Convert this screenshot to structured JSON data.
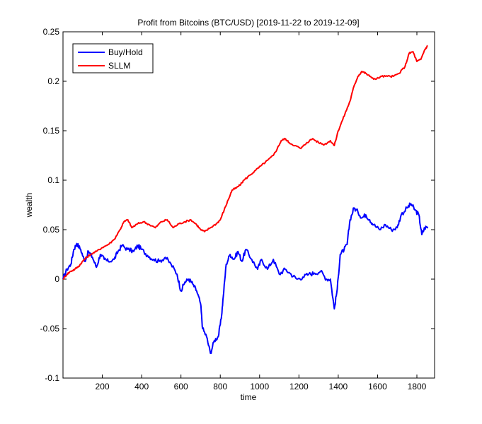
{
  "chart_data": {
    "type": "line",
    "title": "Profit from Bitcoins (BTC/USD) [2019-11-22 to 2019-12-09]",
    "xlabel": "time",
    "ylabel": "wealth",
    "xlim": [
      0,
      1890
    ],
    "ylim": [
      -0.1,
      0.25
    ],
    "xticks": [
      200,
      400,
      600,
      800,
      1000,
      1200,
      1400,
      1600,
      1800
    ],
    "yticks": [
      -0.1,
      -0.05,
      0,
      0.05,
      0.1,
      0.15,
      0.2,
      0.25
    ],
    "ytick_labels": [
      "-0.1",
      "-0.05",
      "0",
      "0.05",
      "0.1",
      "0.15",
      "0.2",
      "0.25"
    ],
    "grid": false,
    "legend_position": "top-left",
    "series": [
      {
        "name": "Buy/Hold",
        "color": "#0000ff",
        "points": [
          [
            0,
            0.0
          ],
          [
            20,
            0.01
          ],
          [
            40,
            0.015
          ],
          [
            55,
            0.03
          ],
          [
            70,
            0.036
          ],
          [
            90,
            0.03
          ],
          [
            110,
            0.018
          ],
          [
            130,
            0.028
          ],
          [
            150,
            0.022
          ],
          [
            170,
            0.012
          ],
          [
            190,
            0.025
          ],
          [
            210,
            0.02
          ],
          [
            230,
            0.018
          ],
          [
            260,
            0.02
          ],
          [
            280,
            0.028
          ],
          [
            300,
            0.034
          ],
          [
            330,
            0.03
          ],
          [
            360,
            0.028
          ],
          [
            380,
            0.034
          ],
          [
            400,
            0.03
          ],
          [
            430,
            0.024
          ],
          [
            460,
            0.02
          ],
          [
            490,
            0.018
          ],
          [
            520,
            0.022
          ],
          [
            550,
            0.015
          ],
          [
            580,
            0.005
          ],
          [
            600,
            -0.012
          ],
          [
            620,
            -0.003
          ],
          [
            640,
            0.0
          ],
          [
            660,
            -0.005
          ],
          [
            680,
            -0.012
          ],
          [
            700,
            -0.025
          ],
          [
            710,
            -0.05
          ],
          [
            730,
            -0.058
          ],
          [
            750,
            -0.075
          ],
          [
            770,
            -0.062
          ],
          [
            790,
            -0.058
          ],
          [
            805,
            -0.04
          ],
          [
            815,
            -0.018
          ],
          [
            830,
            0.015
          ],
          [
            850,
            0.025
          ],
          [
            870,
            0.02
          ],
          [
            890,
            0.028
          ],
          [
            910,
            0.018
          ],
          [
            930,
            0.03
          ],
          [
            960,
            0.02
          ],
          [
            990,
            0.01
          ],
          [
            1010,
            0.02
          ],
          [
            1040,
            0.01
          ],
          [
            1070,
            0.02
          ],
          [
            1100,
            0.005
          ],
          [
            1130,
            0.01
          ],
          [
            1160,
            0.005
          ],
          [
            1190,
            0.0
          ],
          [
            1220,
            0.002
          ],
          [
            1250,
            0.005
          ],
          [
            1280,
            0.006
          ],
          [
            1310,
            0.008
          ],
          [
            1340,
            0.0
          ],
          [
            1360,
            0.0
          ],
          [
            1380,
            -0.03
          ],
          [
            1395,
            -0.01
          ],
          [
            1410,
            0.025
          ],
          [
            1430,
            0.03
          ],
          [
            1445,
            0.035
          ],
          [
            1460,
            0.06
          ],
          [
            1480,
            0.072
          ],
          [
            1500,
            0.068
          ],
          [
            1520,
            0.062
          ],
          [
            1540,
            0.065
          ],
          [
            1560,
            0.06
          ],
          [
            1580,
            0.055
          ],
          [
            1610,
            0.05
          ],
          [
            1640,
            0.055
          ],
          [
            1670,
            0.05
          ],
          [
            1700,
            0.052
          ],
          [
            1720,
            0.065
          ],
          [
            1750,
            0.072
          ],
          [
            1770,
            0.076
          ],
          [
            1790,
            0.07
          ],
          [
            1810,
            0.065
          ],
          [
            1825,
            0.045
          ],
          [
            1840,
            0.052
          ],
          [
            1855,
            0.053
          ]
        ]
      },
      {
        "name": "SLLM",
        "color": "#ff0000",
        "points": [
          [
            0,
            0.0
          ],
          [
            20,
            0.005
          ],
          [
            40,
            0.008
          ],
          [
            60,
            0.01
          ],
          [
            80,
            0.013
          ],
          [
            100,
            0.018
          ],
          [
            120,
            0.022
          ],
          [
            140,
            0.025
          ],
          [
            170,
            0.028
          ],
          [
            200,
            0.032
          ],
          [
            230,
            0.035
          ],
          [
            260,
            0.04
          ],
          [
            290,
            0.05
          ],
          [
            310,
            0.058
          ],
          [
            330,
            0.06
          ],
          [
            350,
            0.052
          ],
          [
            380,
            0.056
          ],
          [
            410,
            0.058
          ],
          [
            440,
            0.055
          ],
          [
            470,
            0.052
          ],
          [
            500,
            0.058
          ],
          [
            530,
            0.06
          ],
          [
            560,
            0.052
          ],
          [
            590,
            0.056
          ],
          [
            620,
            0.058
          ],
          [
            650,
            0.06
          ],
          [
            680,
            0.055
          ],
          [
            700,
            0.05
          ],
          [
            720,
            0.048
          ],
          [
            750,
            0.052
          ],
          [
            780,
            0.056
          ],
          [
            800,
            0.06
          ],
          [
            820,
            0.07
          ],
          [
            840,
            0.08
          ],
          [
            860,
            0.09
          ],
          [
            880,
            0.092
          ],
          [
            900,
            0.095
          ],
          [
            920,
            0.1
          ],
          [
            950,
            0.105
          ],
          [
            980,
            0.11
          ],
          [
            1010,
            0.115
          ],
          [
            1040,
            0.12
          ],
          [
            1070,
            0.125
          ],
          [
            1090,
            0.132
          ],
          [
            1110,
            0.14
          ],
          [
            1130,
            0.142
          ],
          [
            1150,
            0.138
          ],
          [
            1180,
            0.135
          ],
          [
            1210,
            0.132
          ],
          [
            1240,
            0.138
          ],
          [
            1270,
            0.142
          ],
          [
            1300,
            0.138
          ],
          [
            1330,
            0.136
          ],
          [
            1360,
            0.14
          ],
          [
            1380,
            0.135
          ],
          [
            1400,
            0.15
          ],
          [
            1420,
            0.16
          ],
          [
            1440,
            0.17
          ],
          [
            1460,
            0.18
          ],
          [
            1480,
            0.195
          ],
          [
            1500,
            0.205
          ],
          [
            1520,
            0.21
          ],
          [
            1540,
            0.208
          ],
          [
            1560,
            0.205
          ],
          [
            1590,
            0.202
          ],
          [
            1620,
            0.205
          ],
          [
            1650,
            0.205
          ],
          [
            1680,
            0.205
          ],
          [
            1710,
            0.208
          ],
          [
            1740,
            0.215
          ],
          [
            1760,
            0.228
          ],
          [
            1780,
            0.23
          ],
          [
            1800,
            0.22
          ],
          [
            1820,
            0.222
          ],
          [
            1840,
            0.232
          ],
          [
            1855,
            0.236
          ]
        ]
      }
    ]
  }
}
